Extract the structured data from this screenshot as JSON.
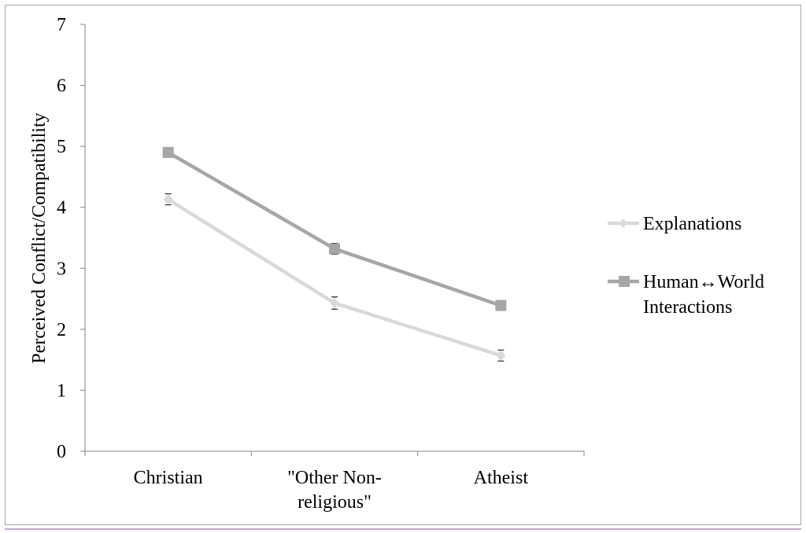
{
  "chart_data": {
    "type": "line",
    "title": "",
    "xlabel": "",
    "ylabel": "Perceived Conflict/Compatibility",
    "ylim": [
      0,
      7
    ],
    "yticks": [
      0,
      1,
      2,
      3,
      4,
      5,
      6,
      7
    ],
    "categories": [
      [
        "Christian"
      ],
      [
        "\"Other Non-",
        "religious\""
      ],
      [
        "Atheist"
      ]
    ],
    "grid": false,
    "legend_position": "right",
    "series": [
      {
        "name": "Explanations",
        "marker": "diamond",
        "color": "#d9d9d9",
        "values": [
          4.13,
          2.43,
          1.57
        ],
        "errors": [
          0.09,
          0.1,
          0.09
        ]
      },
      {
        "name_lines": [
          "Human↔World",
          "Interactions"
        ],
        "name": "Human↔World Interactions",
        "marker": "square",
        "color": "#a6a6a6",
        "values": [
          4.9,
          3.32,
          2.39
        ],
        "errors": [
          0.07,
          0.09,
          0.08
        ]
      }
    ]
  }
}
